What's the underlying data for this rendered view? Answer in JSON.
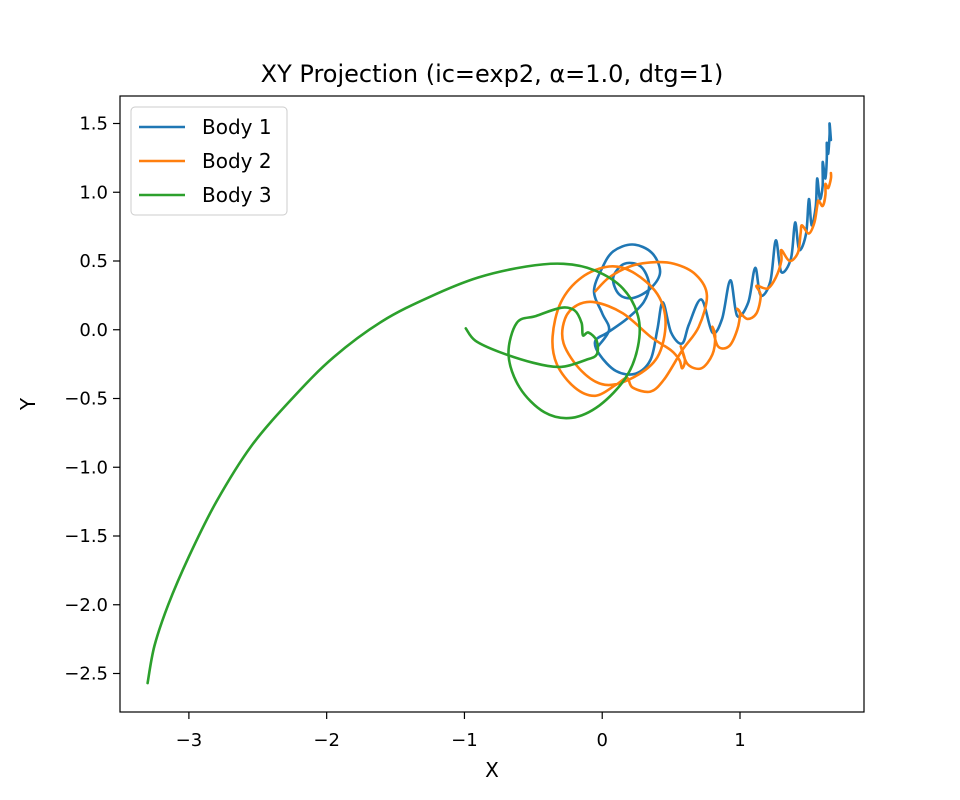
{
  "chart_data": {
    "type": "line",
    "title": "XY Projection (ic=exp2, α=1.0, dtg=1)",
    "xlabel": "X",
    "ylabel": "Y",
    "xlim": [
      -3.5,
      1.9
    ],
    "ylim": [
      -2.78,
      1.7
    ],
    "xticks": [
      -3,
      -2,
      -1,
      0,
      1
    ],
    "xtick_labels": [
      "−3",
      "−2",
      "−1",
      "0",
      "1"
    ],
    "yticks": [
      -2.5,
      -2.0,
      -1.5,
      -1.0,
      -0.5,
      0.0,
      0.5,
      1.0,
      1.5
    ],
    "ytick_labels": [
      "−2.5",
      "−2.0",
      "−1.5",
      "−1.0",
      "−0.5",
      "0.0",
      "0.5",
      "1.0",
      "1.5"
    ],
    "grid": false,
    "legend_position": "upper-left",
    "series": [
      {
        "name": "Body 1",
        "color": "#1f77b4",
        "points": [
          [
            -0.03,
            -0.12
          ],
          [
            0.05,
            0.0
          ],
          [
            0.0,
            0.12
          ],
          [
            -0.06,
            0.28
          ],
          [
            0.0,
            0.45
          ],
          [
            0.08,
            0.57
          ],
          [
            0.22,
            0.62
          ],
          [
            0.36,
            0.56
          ],
          [
            0.42,
            0.42
          ],
          [
            0.35,
            0.3
          ],
          [
            0.22,
            0.23
          ],
          [
            0.12,
            0.26
          ],
          [
            0.08,
            0.38
          ],
          [
            0.16,
            0.48
          ],
          [
            0.28,
            0.46
          ],
          [
            0.34,
            0.33
          ],
          [
            0.3,
            0.2
          ],
          [
            0.18,
            0.08
          ],
          [
            0.04,
            -0.02
          ],
          [
            -0.05,
            -0.08
          ],
          [
            -0.02,
            -0.18
          ],
          [
            0.1,
            -0.3
          ],
          [
            0.24,
            -0.32
          ],
          [
            0.35,
            -0.22
          ],
          [
            0.4,
            0.0
          ],
          [
            0.44,
            0.2
          ],
          [
            0.5,
            -0.02
          ],
          [
            0.58,
            -0.1
          ],
          [
            0.63,
            0.04
          ],
          [
            0.72,
            0.22
          ],
          [
            0.8,
            -0.02
          ],
          [
            0.87,
            0.08
          ],
          [
            0.93,
            0.36
          ],
          [
            0.98,
            0.1
          ],
          [
            1.06,
            0.2
          ],
          [
            1.11,
            0.45
          ],
          [
            1.15,
            0.25
          ],
          [
            1.22,
            0.35
          ],
          [
            1.26,
            0.65
          ],
          [
            1.3,
            0.42
          ],
          [
            1.37,
            0.52
          ],
          [
            1.4,
            0.78
          ],
          [
            1.43,
            0.58
          ],
          [
            1.48,
            0.7
          ],
          [
            1.5,
            0.95
          ],
          [
            1.52,
            0.76
          ],
          [
            1.55,
            0.9
          ],
          [
            1.56,
            1.1
          ],
          [
            1.58,
            0.95
          ],
          [
            1.6,
            1.05
          ],
          [
            1.6,
            1.22
          ],
          [
            1.62,
            1.1
          ],
          [
            1.63,
            1.25
          ],
          [
            1.63,
            1.36
          ],
          [
            1.64,
            1.28
          ],
          [
            1.65,
            1.42
          ],
          [
            1.65,
            1.5
          ],
          [
            1.66,
            1.38
          ]
        ]
      },
      {
        "name": "Body 2",
        "color": "#ff7f0e",
        "points": [
          [
            -0.05,
            0.28
          ],
          [
            0.05,
            0.38
          ],
          [
            0.2,
            0.46
          ],
          [
            0.35,
            0.49
          ],
          [
            0.52,
            0.48
          ],
          [
            0.68,
            0.4
          ],
          [
            0.76,
            0.25
          ],
          [
            0.7,
            0.02
          ],
          [
            0.58,
            -0.15
          ],
          [
            0.45,
            -0.36
          ],
          [
            0.35,
            -0.45
          ],
          [
            0.22,
            -0.42
          ],
          [
            0.18,
            -0.35
          ],
          [
            0.1,
            -0.4
          ],
          [
            -0.05,
            -0.48
          ],
          [
            -0.2,
            -0.42
          ],
          [
            -0.33,
            -0.25
          ],
          [
            -0.36,
            -0.05
          ],
          [
            -0.3,
            0.2
          ],
          [
            -0.15,
            0.38
          ],
          [
            0.05,
            0.46
          ],
          [
            0.22,
            0.42
          ],
          [
            0.4,
            0.26
          ],
          [
            0.46,
            0.05
          ],
          [
            0.4,
            -0.2
          ],
          [
            0.22,
            -0.35
          ],
          [
            0.02,
            -0.4
          ],
          [
            -0.15,
            -0.3
          ],
          [
            -0.28,
            -0.1
          ],
          [
            -0.27,
            0.08
          ],
          [
            -0.18,
            0.18
          ],
          [
            -0.05,
            0.2
          ],
          [
            0.15,
            0.12
          ],
          [
            0.35,
            -0.05
          ],
          [
            0.5,
            -0.15
          ],
          [
            0.56,
            -0.22
          ],
          [
            0.58,
            -0.28
          ],
          [
            0.6,
            -0.22
          ],
          [
            0.57,
            -0.12
          ],
          [
            0.62,
            -0.25
          ],
          [
            0.72,
            -0.28
          ],
          [
            0.8,
            -0.18
          ],
          [
            0.82,
            -0.05
          ],
          [
            0.8,
            0.02
          ],
          [
            0.84,
            -0.12
          ],
          [
            0.92,
            -0.12
          ],
          [
            0.98,
            0.0
          ],
          [
            1.0,
            0.12
          ],
          [
            0.98,
            0.15
          ],
          [
            1.05,
            0.08
          ],
          [
            1.12,
            0.12
          ],
          [
            1.15,
            0.25
          ],
          [
            1.12,
            0.32
          ],
          [
            1.2,
            0.3
          ],
          [
            1.26,
            0.38
          ],
          [
            1.3,
            0.5
          ],
          [
            1.3,
            0.58
          ],
          [
            1.36,
            0.5
          ],
          [
            1.42,
            0.56
          ],
          [
            1.44,
            0.7
          ],
          [
            1.45,
            0.76
          ],
          [
            1.5,
            0.7
          ],
          [
            1.54,
            0.78
          ],
          [
            1.56,
            0.9
          ],
          [
            1.57,
            0.94
          ],
          [
            1.6,
            0.9
          ],
          [
            1.62,
            0.98
          ],
          [
            1.62,
            1.06
          ],
          [
            1.64,
            1.03
          ],
          [
            1.66,
            1.1
          ],
          [
            1.66,
            1.14
          ]
        ]
      },
      {
        "name": "Body 3",
        "color": "#2ca02c",
        "points": [
          [
            -3.3,
            -2.57
          ],
          [
            -3.25,
            -2.3
          ],
          [
            -3.15,
            -2.0
          ],
          [
            -3.0,
            -1.65
          ],
          [
            -2.8,
            -1.25
          ],
          [
            -2.55,
            -0.85
          ],
          [
            -2.25,
            -0.5
          ],
          [
            -1.95,
            -0.2
          ],
          [
            -1.6,
            0.06
          ],
          [
            -1.25,
            0.24
          ],
          [
            -0.9,
            0.38
          ],
          [
            -0.55,
            0.46
          ],
          [
            -0.28,
            0.48
          ],
          [
            -0.05,
            0.43
          ],
          [
            0.15,
            0.3
          ],
          [
            0.26,
            0.1
          ],
          [
            0.26,
            -0.12
          ],
          [
            0.17,
            -0.35
          ],
          [
            -0.02,
            -0.55
          ],
          [
            -0.22,
            -0.64
          ],
          [
            -0.42,
            -0.6
          ],
          [
            -0.6,
            -0.42
          ],
          [
            -0.68,
            -0.18
          ],
          [
            -0.62,
            0.05
          ],
          [
            -0.48,
            0.1
          ],
          [
            -0.3,
            0.16
          ],
          [
            -0.2,
            0.14
          ],
          [
            -0.15,
            0.05
          ],
          [
            -0.14,
            -0.04
          ],
          [
            -0.1,
            -0.02
          ],
          [
            -0.04,
            -0.08
          ],
          [
            -0.04,
            -0.18
          ],
          [
            -0.12,
            -0.22
          ],
          [
            -0.3,
            -0.27
          ],
          [
            -0.5,
            -0.24
          ],
          [
            -0.75,
            -0.16
          ],
          [
            -0.92,
            -0.08
          ],
          [
            -0.99,
            0.01
          ]
        ]
      }
    ]
  }
}
